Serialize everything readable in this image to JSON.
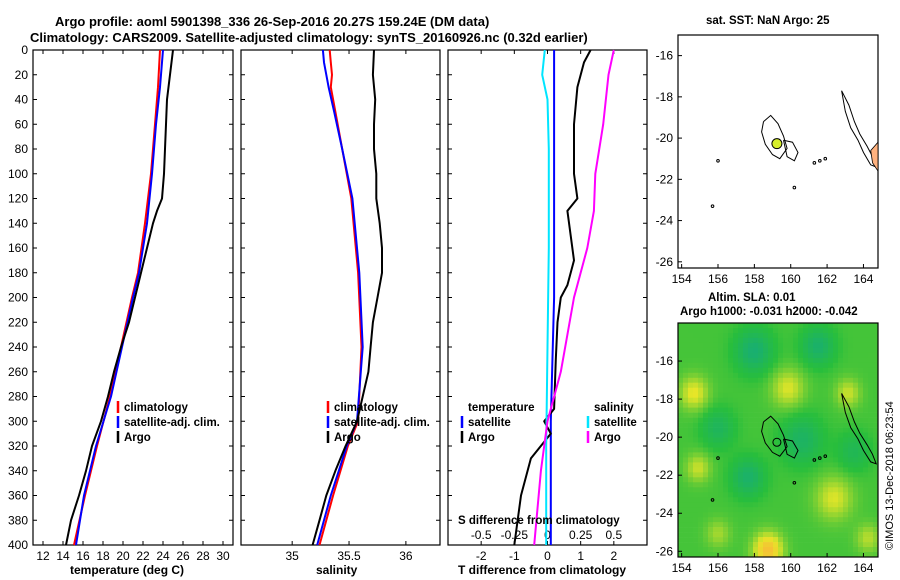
{
  "title_line1": "Argo profile: aoml 5901398_336 26-Sep-2016 20.27S 159.24E (DM data)",
  "title_line2": "Climatology: CARS2009. Satellite-adjusted climatology: synTS_20160926.nc (0.32d earlier)",
  "colors": {
    "climatology": "#ff0000",
    "satellite": "#0000ff",
    "argo": "#000000",
    "sat_salinity": "#00e5ff",
    "argo_salinity": "#ff00ff",
    "land": "#ffb27f",
    "argo_marker": "#d7ef2b"
  },
  "y_ticks": [
    "0",
    "20",
    "40",
    "60",
    "80",
    "100",
    "120",
    "140",
    "160",
    "180",
    "200",
    "220",
    "240",
    "260",
    "280",
    "300",
    "320",
    "340",
    "360",
    "380",
    "400"
  ],
  "chart_data": [
    {
      "type": "line",
      "xlabel": "temperature (deg C)",
      "xlim": [
        11,
        31
      ],
      "ylim": [
        0,
        400
      ],
      "x_ticks": [
        "12",
        "14",
        "16",
        "18",
        "20",
        "22",
        "24",
        "26",
        "28",
        "30"
      ],
      "legend": [
        "climatology",
        "satellite-adj. clim.",
        "Argo"
      ],
      "series": [
        {
          "name": "climatology",
          "color": "#ff0000",
          "depth": [
            0,
            30,
            60,
            100,
            140,
            180,
            200,
            240,
            280,
            320,
            360,
            400
          ],
          "values": [
            23.7,
            23.5,
            23.2,
            22.8,
            22.2,
            21.5,
            20.9,
            19.8,
            18.7,
            17.4,
            16.2,
            15.1
          ]
        },
        {
          "name": "satellite-adj. clim.",
          "color": "#0000ff",
          "depth": [
            0,
            30,
            60,
            100,
            140,
            180,
            200,
            240,
            280,
            320,
            360,
            400
          ],
          "values": [
            24.0,
            23.7,
            23.3,
            22.9,
            22.4,
            21.6,
            21.0,
            19.9,
            18.8,
            17.3,
            16.1,
            15.3
          ]
        },
        {
          "name": "Argo",
          "color": "#000000",
          "depth": [
            0,
            20,
            40,
            60,
            80,
            100,
            120,
            130,
            140,
            160,
            180,
            200,
            220,
            240,
            260,
            280,
            300,
            320,
            340,
            360,
            380,
            400
          ],
          "values": [
            25.0,
            24.7,
            24.4,
            24.3,
            24.2,
            24.1,
            23.9,
            23.4,
            23.0,
            22.4,
            21.8,
            21.2,
            20.6,
            19.8,
            19.1,
            18.5,
            17.8,
            16.9,
            16.3,
            15.6,
            14.8,
            14.3
          ]
        }
      ]
    },
    {
      "type": "line",
      "xlabel": "salinity",
      "xlim": [
        34.55,
        36.3
      ],
      "ylim": [
        0,
        400
      ],
      "x_ticks": [
        "35",
        "35.5",
        "36"
      ],
      "legend": [
        "climatology",
        "satellite-adj. clim.",
        "Argo"
      ],
      "series": [
        {
          "name": "climatology",
          "color": "#ff0000",
          "depth": [
            0,
            10,
            20,
            30,
            50,
            80,
            120,
            180,
            240,
            300,
            320,
            360,
            400
          ],
          "values": [
            35.33,
            35.34,
            35.35,
            35.34,
            35.38,
            35.44,
            35.52,
            35.58,
            35.61,
            35.58,
            35.49,
            35.36,
            35.24
          ]
        },
        {
          "name": "satellite-adj. clim.",
          "color": "#0000ff",
          "depth": [
            0,
            10,
            30,
            50,
            80,
            120,
            180,
            240,
            300,
            320,
            360,
            400
          ],
          "values": [
            35.27,
            35.28,
            35.32,
            35.37,
            35.44,
            35.53,
            35.59,
            35.62,
            35.57,
            35.48,
            35.34,
            35.22
          ]
        },
        {
          "name": "Argo",
          "color": "#000000",
          "depth": [
            0,
            20,
            40,
            60,
            80,
            100,
            120,
            140,
            160,
            180,
            200,
            220,
            240,
            260,
            280,
            300,
            320,
            340,
            360,
            380,
            400
          ],
          "values": [
            35.72,
            35.71,
            35.73,
            35.72,
            35.72,
            35.74,
            35.74,
            35.77,
            35.79,
            35.79,
            35.75,
            35.71,
            35.69,
            35.67,
            35.62,
            35.57,
            35.47,
            35.38,
            35.3,
            35.24,
            35.18
          ]
        }
      ]
    },
    {
      "type": "line",
      "xlabel": "T difference from climatology",
      "xlabel2": "S difference from climatology",
      "xlim": [
        -3,
        3
      ],
      "ylim": [
        0,
        400
      ],
      "x_ticks": [
        "-2",
        "-1",
        "0",
        "1",
        "2"
      ],
      "x2_ticks": [
        "-0.5",
        "-0.25",
        "0",
        "0.25",
        "0.5"
      ],
      "legend_left_title": "temperature",
      "legend_right_title": "salinity",
      "legend": [
        "satellite",
        "Argo",
        "satellite",
        "Argo"
      ],
      "series": [
        {
          "name": "T satellite",
          "color": "#0000ff",
          "depth": [
            0,
            100,
            200,
            300,
            400
          ],
          "values": [
            0.2,
            0.2,
            0.2,
            0.1,
            0.1
          ]
        },
        {
          "name": "T Argo",
          "color": "#000000",
          "depth": [
            0,
            10,
            30,
            60,
            100,
            120,
            130,
            150,
            170,
            190,
            200,
            220,
            250,
            290,
            300,
            310,
            330,
            360,
            400
          ],
          "values": [
            1.3,
            1.1,
            0.9,
            0.8,
            0.8,
            0.9,
            0.6,
            0.7,
            0.8,
            0.6,
            0.4,
            0.3,
            0.25,
            0.2,
            -0.1,
            0.1,
            -0.5,
            -0.8,
            -1.0
          ]
        },
        {
          "name": "S satellite",
          "color": "#00e5ff",
          "depth": [
            0,
            20,
            40,
            80,
            160,
            240,
            320,
            400
          ],
          "values": [
            -0.02,
            -0.04,
            0.0,
            0.01,
            0.01,
            0.0,
            -0.01,
            -0.01
          ]
        },
        {
          "name": "S Argo",
          "color": "#ff00ff",
          "depth": [
            0,
            20,
            60,
            100,
            130,
            160,
            200,
            260,
            300,
            340,
            400
          ],
          "values": [
            0.5,
            0.46,
            0.42,
            0.36,
            0.35,
            0.3,
            0.2,
            0.1,
            0.0,
            -0.05,
            -0.1
          ]
        }
      ]
    },
    {
      "type": "scatter",
      "title": "sat. SST: NaN Argo: 25",
      "x_ticks": [
        "154",
        "156",
        "158",
        "160",
        "162",
        "164"
      ],
      "y_ticks": [
        "-16",
        "-18",
        "-20",
        "-22",
        "-24",
        "-26"
      ],
      "xlim": [
        153.8,
        164.8
      ],
      "ylim": [
        -26.3,
        -15.0
      ],
      "argo_position": {
        "lon": 159.24,
        "lat": -20.27
      }
    },
    {
      "type": "heatmap",
      "title": "Altim. SLA: 0.01",
      "subtitle": "Argo h1000: -0.031 h2000: -0.042",
      "x_ticks": [
        "154",
        "156",
        "158",
        "160",
        "162",
        "164"
      ],
      "y_ticks": [
        "-16",
        "-18",
        "-20",
        "-22",
        "-24",
        "-26"
      ],
      "xlim": [
        153.8,
        164.8
      ],
      "ylim": [
        -26.3,
        -14.0
      ],
      "argo_position": {
        "lon": 159.24,
        "lat": -20.27
      }
    }
  ],
  "credit": "©IMOS 13-Dec-2018 06:23:54"
}
